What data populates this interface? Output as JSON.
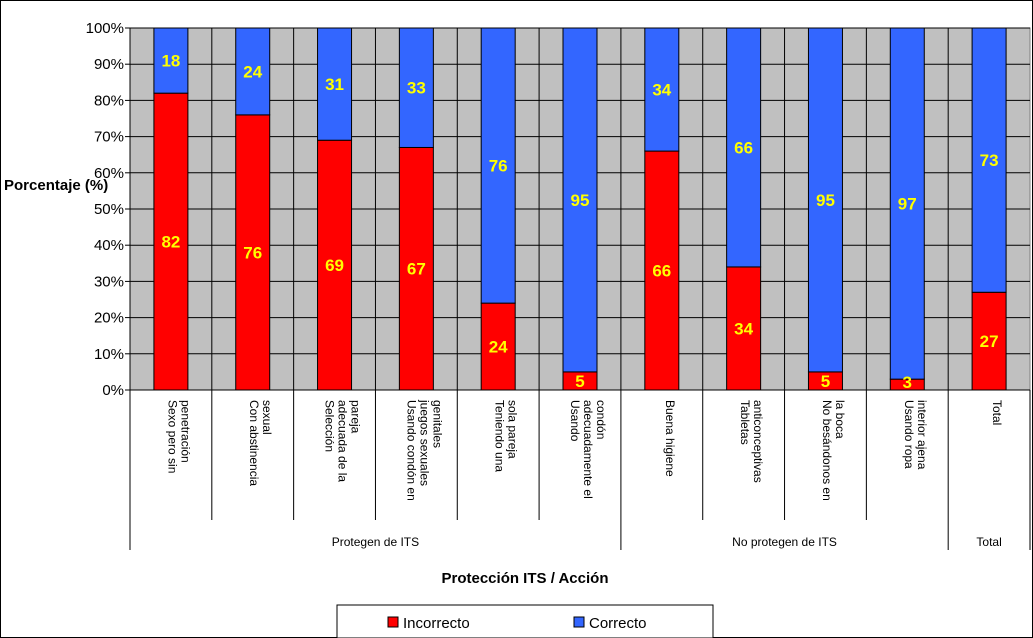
{
  "chart_data": {
    "type": "bar",
    "stacked": true,
    "percent": true,
    "categories": [
      "Sexo pero sin penetración",
      "Con abstinencia sexual",
      "Selección adecuada de la pareja",
      "Usando condón en juegos sexuales genitales",
      "Teniendo una sola pareja",
      "Usando adecuadamente el condón",
      "Buena higiene",
      "Tabletas anticonceptivas",
      "No besándonos en la boca",
      "Usando ropa interior ajena",
      "Total"
    ],
    "category_groups": [
      {
        "label": "Protegen de ITS",
        "count": 6
      },
      {
        "label": "No protegen de ITS",
        "count": 4
      },
      {
        "label": "Total",
        "count": 1
      }
    ],
    "series": [
      {
        "name": "Incorrecto",
        "color": "#ff0000",
        "values": [
          82,
          76,
          69,
          67,
          24,
          5,
          66,
          34,
          5,
          3,
          27
        ]
      },
      {
        "name": "Correcto",
        "color": "#3366ff",
        "values": [
          18,
          24,
          31,
          33,
          76,
          95,
          34,
          66,
          95,
          97,
          73
        ]
      }
    ],
    "ylabel": "Porcentaje (%)",
    "xlabel": "Protección ITS / Acción",
    "ylim": [
      0,
      100
    ],
    "yticks": [
      "0%",
      "10%",
      "20%",
      "30%",
      "40%",
      "50%",
      "60%",
      "70%",
      "80%",
      "90%",
      "100%"
    ],
    "grid": true,
    "plot_background": "#c0c0c0",
    "data_label_color": "#ffff00",
    "legend_position": "bottom"
  }
}
